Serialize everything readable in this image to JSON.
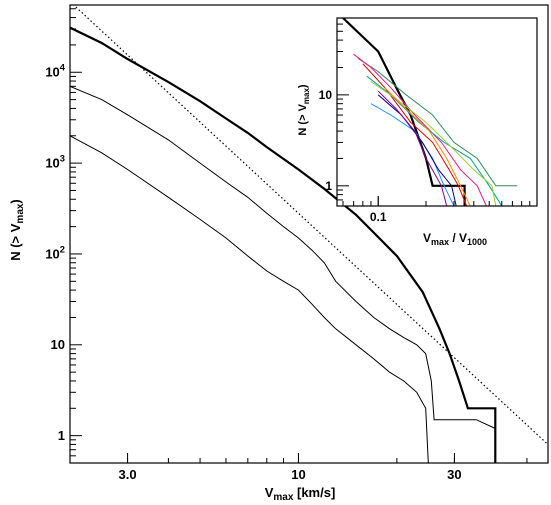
{
  "chart_data": [
    {
      "type": "line",
      "title": "",
      "xlabel": "V_max [km/s]",
      "ylabel": "N (> V_max)",
      "xscale": "log",
      "yscale": "log",
      "xlim": [
        2.0,
        58.0
      ],
      "ylim": [
        0.5,
        55000
      ],
      "grid": false,
      "x_ticks": [
        3.0,
        10,
        30
      ],
      "x_tick_labels": [
        "3.0",
        "10",
        "30"
      ],
      "y_ticks": [
        1,
        10,
        100,
        1000,
        10000
      ],
      "y_tick_labels": [
        "1",
        "10",
        "10^2",
        "10^3",
        "10^4"
      ],
      "series": [
        {
          "style": "thick",
          "color": "#000000",
          "points": [
            [
              2.0,
              31000
            ],
            [
              2.5,
              21000
            ],
            [
              3.0,
              14000
            ],
            [
              4.0,
              7800
            ],
            [
              5.0,
              4800
            ],
            [
              6.0,
              3100
            ],
            [
              7.0,
              2150
            ],
            [
              8.0,
              1500
            ],
            [
              10.0,
              850
            ],
            [
              12.0,
              520
            ],
            [
              15.0,
              270
            ],
            [
              20.0,
              95
            ],
            [
              24.0,
              38
            ],
            [
              27.0,
              15
            ],
            [
              29.0,
              8
            ],
            [
              31.0,
              4
            ],
            [
              33.0,
              2
            ],
            [
              40.0,
              2
            ],
            [
              40.0,
              0.45
            ]
          ]
        },
        {
          "style": "thin",
          "color": "#000000",
          "points": [
            [
              2.0,
              7000
            ],
            [
              2.5,
              5000
            ],
            [
              3.0,
              3400
            ],
            [
              4.0,
              1800
            ],
            [
              5.0,
              1000
            ],
            [
              6.0,
              620
            ],
            [
              7.0,
              420
            ],
            [
              8.0,
              280
            ],
            [
              9.0,
              200
            ],
            [
              10.0,
              150
            ],
            [
              11.0,
              110
            ],
            [
              12.0,
              80
            ],
            [
              13.0,
              50
            ],
            [
              15.0,
              30
            ],
            [
              17.0,
              20
            ],
            [
              19.0,
              15
            ],
            [
              21.0,
              12
            ],
            [
              23.0,
              10
            ],
            [
              24.5,
              8
            ],
            [
              25.5,
              4
            ],
            [
              26.0,
              1.5
            ],
            [
              35.0,
              1.5
            ],
            [
              40.0,
              1.2
            ],
            [
              40.0,
              0.45
            ]
          ]
        },
        {
          "style": "thin",
          "color": "#000000",
          "points": [
            [
              2.0,
              2000
            ],
            [
              2.5,
              1300
            ],
            [
              3.0,
              850
            ],
            [
              4.0,
              420
            ],
            [
              5.0,
              240
            ],
            [
              6.0,
              150
            ],
            [
              7.0,
              95
            ],
            [
              8.0,
              65
            ],
            [
              9.0,
              50
            ],
            [
              10.0,
              40
            ],
            [
              11.0,
              28
            ],
            [
              12.0,
              20
            ],
            [
              13.0,
              15
            ],
            [
              15.0,
              10
            ],
            [
              17.0,
              7
            ],
            [
              19.0,
              5
            ],
            [
              21.0,
              4
            ],
            [
              23.0,
              3
            ],
            [
              24.5,
              2
            ],
            [
              25.0,
              0.45
            ]
          ]
        },
        {
          "style": "dotted",
          "color": "#000000",
          "points": [
            [
              2.0,
              60000
            ],
            [
              58.0,
              0.8
            ]
          ]
        }
      ]
    },
    {
      "type": "line",
      "title": "",
      "xlabel": "V_max / V_1000",
      "ylabel": "N (> V_max)",
      "xscale": "log",
      "yscale": "log",
      "xlim": [
        0.055,
        1.0
      ],
      "ylim": [
        0.6,
        70
      ],
      "grid": false,
      "x_ticks": [
        0.1
      ],
      "x_tick_labels": [
        "0.1"
      ],
      "y_ticks": [
        1,
        10
      ],
      "y_tick_labels": [
        "1",
        "10"
      ],
      "series": [
        {
          "style": "thick",
          "color": "#000000",
          "points": [
            [
              0.06,
              70
            ],
            [
              0.1,
              30
            ],
            [
              0.13,
              12
            ],
            [
              0.16,
              6
            ],
            [
              0.2,
              2
            ],
            [
              0.22,
              1
            ],
            [
              0.35,
              1
            ],
            [
              0.35,
              0.6
            ]
          ]
        },
        {
          "style": "thin",
          "color": "#2e8b57",
          "points": [
            [
              0.075,
              25
            ],
            [
              0.1,
              18
            ],
            [
              0.15,
              10
            ],
            [
              0.22,
              6
            ],
            [
              0.3,
              3
            ],
            [
              0.42,
              2
            ],
            [
              0.55,
              1
            ],
            [
              0.75,
              1
            ]
          ]
        },
        {
          "style": "thin",
          "color": "#e0198a",
          "points": [
            [
              0.07,
              28
            ],
            [
              0.09,
              20
            ],
            [
              0.12,
              12
            ],
            [
              0.17,
              6
            ],
            [
              0.25,
              3
            ],
            [
              0.33,
              1.5
            ],
            [
              0.42,
              1
            ],
            [
              0.48,
              0.6
            ]
          ]
        },
        {
          "style": "thin",
          "color": "#dd0000",
          "points": [
            [
              0.08,
              22
            ],
            [
              0.11,
              12
            ],
            [
              0.16,
              5
            ],
            [
              0.22,
              3
            ],
            [
              0.28,
              1.5
            ],
            [
              0.32,
              1
            ],
            [
              0.36,
              0.6
            ]
          ]
        },
        {
          "style": "thin",
          "color": "#1e90ff",
          "points": [
            [
              0.09,
              8
            ],
            [
              0.12,
              6
            ],
            [
              0.17,
              4
            ],
            [
              0.22,
              2
            ],
            [
              0.26,
              1
            ],
            [
              0.3,
              0.6
            ]
          ]
        },
        {
          "style": "thin",
          "color": "#00a0a0",
          "points": [
            [
              0.085,
              16
            ],
            [
              0.12,
              10
            ],
            [
              0.18,
              5
            ],
            [
              0.26,
              3
            ],
            [
              0.38,
              2
            ],
            [
              0.5,
              1
            ],
            [
              0.6,
              0.6
            ]
          ]
        },
        {
          "style": "thin",
          "color": "#000080",
          "points": [
            [
              0.1,
              10
            ],
            [
              0.14,
              6
            ],
            [
              0.19,
              3
            ],
            [
              0.24,
              1.5
            ],
            [
              0.29,
              1
            ],
            [
              0.31,
              0.6
            ]
          ]
        },
        {
          "style": "thin",
          "color": "#9acd32",
          "points": [
            [
              0.09,
              14
            ],
            [
              0.13,
              9
            ],
            [
              0.2,
              5
            ],
            [
              0.3,
              2.5
            ],
            [
              0.4,
              1.5
            ],
            [
              0.52,
              1
            ],
            [
              0.55,
              0.6
            ]
          ]
        },
        {
          "style": "thin",
          "color": "#ff8c00",
          "points": [
            [
              0.11,
              12
            ],
            [
              0.15,
              7
            ],
            [
              0.21,
              4
            ],
            [
              0.27,
              2
            ],
            [
              0.33,
              1
            ],
            [
              0.38,
              0.6
            ]
          ]
        },
        {
          "style": "thin",
          "color": "#8b008b",
          "points": [
            [
              0.1,
              11
            ],
            [
              0.13,
              7
            ],
            [
              0.17,
              4
            ],
            [
              0.2,
              2
            ],
            [
              0.25,
              1
            ],
            [
              0.27,
              0.6
            ]
          ]
        }
      ]
    }
  ]
}
